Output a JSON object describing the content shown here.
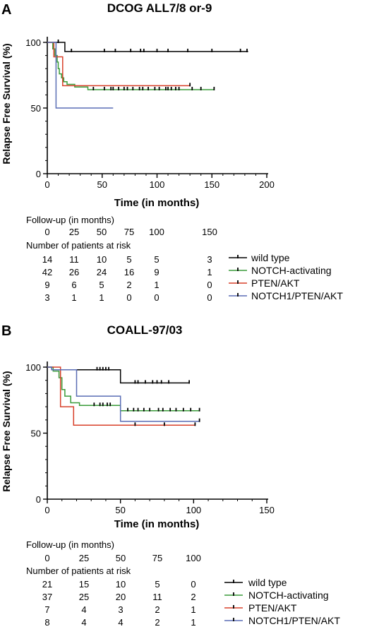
{
  "chart_data": [
    {
      "type": "line",
      "panel": "A",
      "title": "DCOG ALL7/8 or-9",
      "xlabel": "Time (in months)",
      "ylabel": "Relapse Free Survival (%)",
      "xlim": [
        0,
        200
      ],
      "ylim": [
        0,
        100
      ],
      "xticks": [
        0,
        50,
        100,
        150,
        200
      ],
      "yticks": [
        0,
        50,
        100
      ],
      "grid": false,
      "legend_position": "below-right",
      "series": [
        {
          "name": "wild type",
          "color": "#000000",
          "steps": [
            [
              0,
              100
            ],
            [
              16,
              100
            ],
            [
              16,
              93
            ],
            [
              183,
              93
            ]
          ],
          "censor": [
            [
              10,
              100
            ],
            [
              22,
              93
            ],
            [
              52,
              93
            ],
            [
              62,
              93
            ],
            [
              76,
              93
            ],
            [
              85,
              93
            ],
            [
              88,
              93
            ],
            [
              100,
              93
            ],
            [
              110,
              93
            ],
            [
              128,
              93
            ],
            [
              150,
              93
            ],
            [
              176,
              93
            ],
            [
              182,
              93
            ]
          ]
        },
        {
          "name": "NOTCH-activating",
          "color": "#3a9b3a",
          "steps": [
            [
              0,
              100
            ],
            [
              5,
              100
            ],
            [
              5,
              95
            ],
            [
              7,
              95
            ],
            [
              7,
              90
            ],
            [
              9,
              90
            ],
            [
              9,
              85
            ],
            [
              10,
              85
            ],
            [
              10,
              80
            ],
            [
              11,
              80
            ],
            [
              11,
              76
            ],
            [
              13,
              76
            ],
            [
              13,
              73
            ],
            [
              15,
              73
            ],
            [
              15,
              70
            ],
            [
              18,
              70
            ],
            [
              18,
              68
            ],
            [
              25,
              68
            ],
            [
              25,
              66
            ],
            [
              37,
              66
            ],
            [
              37,
              64
            ],
            [
              152,
              64
            ]
          ],
          "censor": [
            [
              42,
              64
            ],
            [
              52,
              64
            ],
            [
              58,
              64
            ],
            [
              60,
              64
            ],
            [
              65,
              64
            ],
            [
              70,
              64
            ],
            [
              73,
              64
            ],
            [
              78,
              64
            ],
            [
              84,
              64
            ],
            [
              87,
              64
            ],
            [
              92,
              64
            ],
            [
              98,
              64
            ],
            [
              102,
              64
            ],
            [
              108,
              64
            ],
            [
              110,
              64
            ],
            [
              113,
              64
            ],
            [
              117,
              64
            ],
            [
              120,
              64
            ],
            [
              132,
              64
            ],
            [
              140,
              64
            ],
            [
              152,
              64
            ]
          ]
        },
        {
          "name": "PTEN/AKT",
          "color": "#d8402a",
          "steps": [
            [
              0,
              100
            ],
            [
              6,
              100
            ],
            [
              6,
              89
            ],
            [
              14,
              89
            ],
            [
              14,
              67
            ],
            [
              130,
              67
            ]
          ],
          "censor": [
            [
              130,
              67
            ]
          ]
        },
        {
          "name": "NOTCH1/PTEN/AKT",
          "color": "#5a6db5",
          "steps": [
            [
              0,
              100
            ],
            [
              8,
              100
            ],
            [
              8,
              50
            ],
            [
              60,
              50
            ]
          ],
          "censor": []
        }
      ],
      "risk_table": {
        "followup_label": "Follow-up (in months)",
        "times": [
          "0",
          "25",
          "50",
          "75",
          "100",
          "150"
        ],
        "risk_label": "Number of patients at risk",
        "rows": [
          [
            "14",
            "11",
            "10",
            "5",
            "5",
            "3"
          ],
          [
            "42",
            "26",
            "24",
            "16",
            "9",
            "1"
          ],
          [
            "9",
            "6",
            "5",
            "2",
            "1",
            "0"
          ],
          [
            "3",
            "1",
            "1",
            "0",
            "0",
            "0"
          ]
        ]
      }
    },
    {
      "type": "line",
      "panel": "B",
      "title": "COALL-97/03",
      "xlabel": "Time (in months)",
      "ylabel": "Relapse Free Survival (%)",
      "xlim": [
        0,
        150
      ],
      "ylim": [
        0,
        100
      ],
      "xticks": [
        0,
        50,
        100,
        150
      ],
      "yticks": [
        0,
        50,
        100
      ],
      "grid": false,
      "legend_position": "below-right",
      "series": [
        {
          "name": "wild type",
          "color": "#000000",
          "steps": [
            [
              0,
              100
            ],
            [
              3,
              100
            ],
            [
              3,
              98
            ],
            [
              50,
              98
            ],
            [
              50,
              88
            ],
            [
              97,
              88
            ]
          ],
          "censor": [
            [
              34,
              98
            ],
            [
              36,
              98
            ],
            [
              38,
              98
            ],
            [
              40,
              98
            ],
            [
              42,
              98
            ],
            [
              60,
              88
            ],
            [
              62,
              88
            ],
            [
              67,
              88
            ],
            [
              72,
              88
            ],
            [
              75,
              88
            ],
            [
              78,
              88
            ],
            [
              83,
              88
            ],
            [
              97,
              88
            ]
          ]
        },
        {
          "name": "NOTCH-activating",
          "color": "#3a9b3a",
          "steps": [
            [
              0,
              100
            ],
            [
              4,
              100
            ],
            [
              4,
              97
            ],
            [
              8,
              97
            ],
            [
              8,
              92
            ],
            [
              10,
              92
            ],
            [
              10,
              83
            ],
            [
              12,
              83
            ],
            [
              12,
              78
            ],
            [
              16,
              78
            ],
            [
              16,
              73
            ],
            [
              22,
              73
            ],
            [
              22,
              71
            ],
            [
              50,
              71
            ],
            [
              50,
              67
            ],
            [
              104,
              67
            ]
          ],
          "censor": [
            [
              32,
              71
            ],
            [
              36,
              71
            ],
            [
              38,
              71
            ],
            [
              41,
              71
            ],
            [
              43,
              71
            ],
            [
              55,
              67
            ],
            [
              59,
              67
            ],
            [
              62,
              67
            ],
            [
              66,
              67
            ],
            [
              70,
              67
            ],
            [
              76,
              67
            ],
            [
              79,
              67
            ],
            [
              84,
              67
            ],
            [
              88,
              67
            ],
            [
              93,
              67
            ],
            [
              98,
              67
            ],
            [
              104,
              67
            ]
          ]
        },
        {
          "name": "PTEN/AKT",
          "color": "#d8402a",
          "steps": [
            [
              0,
              100
            ],
            [
              9,
              100
            ],
            [
              9,
              70
            ],
            [
              18,
              70
            ],
            [
              18,
              56
            ],
            [
              101,
              56
            ]
          ],
          "censor": [
            [
              60,
              56
            ],
            [
              80,
              56
            ],
            [
              101,
              56
            ]
          ]
        },
        {
          "name": "NOTCH1/PTEN/AKT",
          "color": "#5a6db5",
          "steps": [
            [
              0,
              100
            ],
            [
              3,
              100
            ],
            [
              3,
              98
            ],
            [
              20,
              98
            ],
            [
              20,
              78
            ],
            [
              50,
              78
            ],
            [
              50,
              59
            ],
            [
              104,
              59
            ]
          ],
          "censor": [
            [
              104,
              59
            ]
          ]
        }
      ],
      "risk_table": {
        "followup_label": "Follow-up (in months)",
        "times": [
          "0",
          "25",
          "50",
          "75",
          "100"
        ],
        "risk_label": "Number of patients at risk",
        "rows": [
          [
            "21",
            "15",
            "10",
            "5",
            "0"
          ],
          [
            "37",
            "25",
            "20",
            "11",
            "2"
          ],
          [
            "7",
            "4",
            "3",
            "2",
            "1"
          ],
          [
            "8",
            "4",
            "4",
            "2",
            "1"
          ]
        ]
      }
    }
  ]
}
